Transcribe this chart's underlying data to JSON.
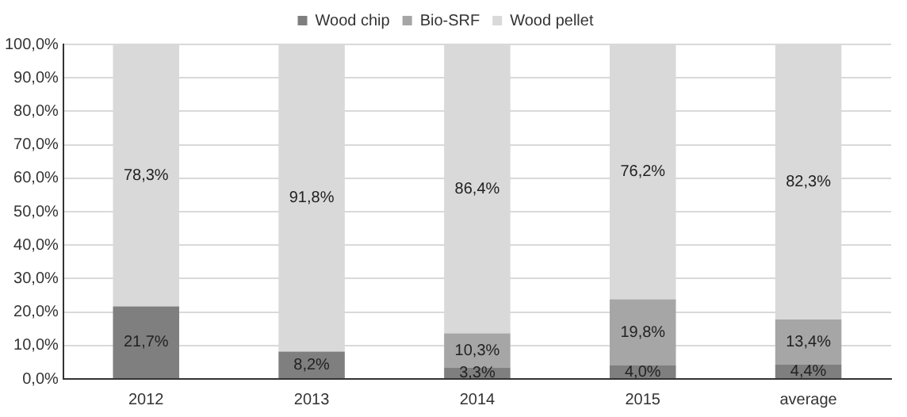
{
  "chart_data": {
    "type": "bar",
    "stacked": true,
    "categories": [
      "2012",
      "2013",
      "2014",
      "2015",
      "average"
    ],
    "series": [
      {
        "name": "Wood chip",
        "color": "#7f7f7f",
        "values": [
          21.7,
          8.2,
          3.3,
          4.0,
          4.4
        ],
        "value_labels": [
          "21,7%",
          "8,2%",
          "3,3%",
          "4,0%",
          "4,4%"
        ]
      },
      {
        "name": "Bio-SRF",
        "color": "#a6a6a6",
        "values": [
          null,
          null,
          10.3,
          19.8,
          13.4
        ],
        "value_labels": [
          null,
          null,
          "10,3%",
          "19,8%",
          "13,4%"
        ]
      },
      {
        "name": "Wood pellet",
        "color": "#d9d9d9",
        "values": [
          78.3,
          91.8,
          86.4,
          76.2,
          82.3
        ],
        "value_labels": [
          "78,3%",
          "91,8%",
          "86,4%",
          "76,2%",
          "82,3%"
        ]
      }
    ],
    "ylim": [
      0,
      100
    ],
    "yticks": [
      {
        "value": 0,
        "label": "0,0%"
      },
      {
        "value": 10,
        "label": "10,0%"
      },
      {
        "value": 20,
        "label": "20,0%"
      },
      {
        "value": 30,
        "label": "30,0%"
      },
      {
        "value": 40,
        "label": "40,0%"
      },
      {
        "value": 50,
        "label": "50,0%"
      },
      {
        "value": 60,
        "label": "60,0%"
      },
      {
        "value": 70,
        "label": "70,0%"
      },
      {
        "value": 80,
        "label": "80,0%"
      },
      {
        "value": 90,
        "label": "90,0%"
      },
      {
        "value": 100,
        "label": "100,0%"
      }
    ],
    "grid": "y",
    "legend": "top"
  }
}
